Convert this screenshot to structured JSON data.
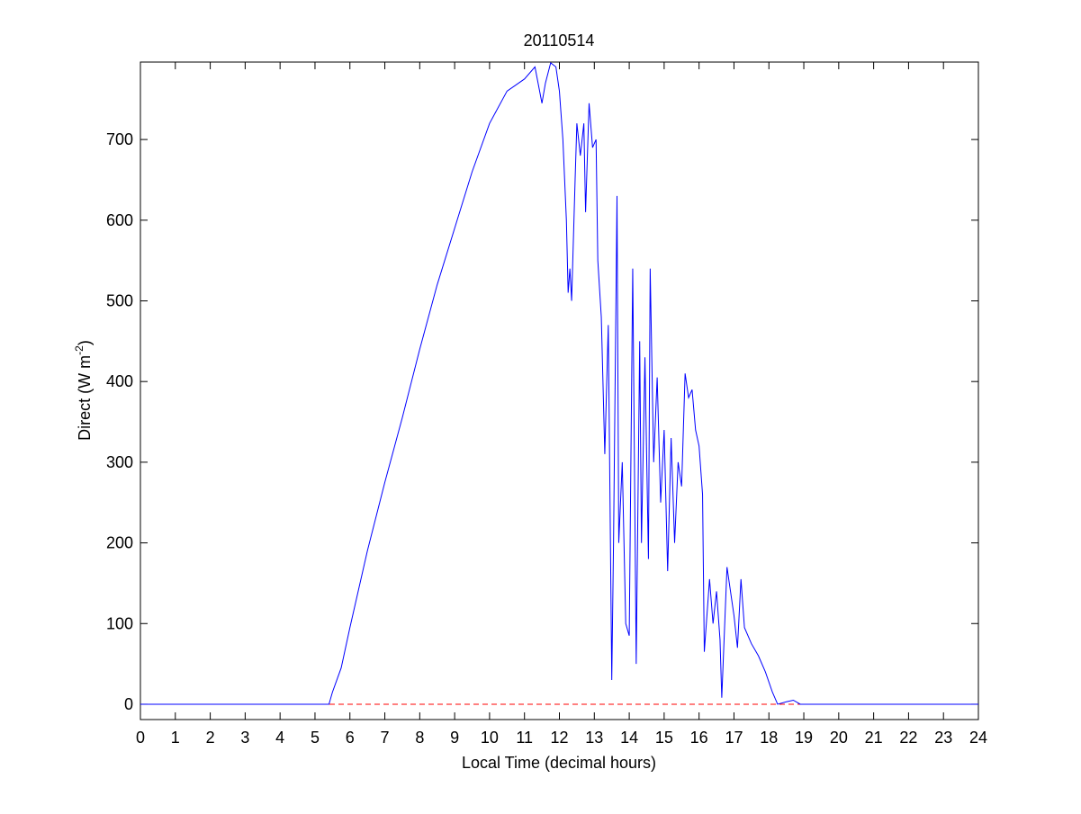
{
  "chart_data": {
    "type": "line",
    "title": "20110514",
    "x_label": "Local Time (decimal hours)",
    "y_label": [
      "Direct (W m",
      "-2",
      ")"
    ],
    "x": [
      0,
      5.4,
      5.5,
      5.75,
      6,
      6.5,
      7,
      7.5,
      8,
      8.5,
      9,
      9.5,
      10,
      10.5,
      11,
      11.3,
      11.5,
      11.6,
      11.75,
      11.9,
      12,
      12.1,
      12.2,
      12.25,
      12.3,
      12.35,
      12.45,
      12.5,
      12.6,
      12.7,
      12.75,
      12.85,
      12.95,
      13.05,
      13.1,
      13.2,
      13.3,
      13.4,
      13.5,
      13.55,
      13.65,
      13.7,
      13.8,
      13.9,
      14,
      14.1,
      14.2,
      14.3,
      14.35,
      14.45,
      14.55,
      14.6,
      14.7,
      14.8,
      14.9,
      15,
      15.1,
      15.2,
      15.3,
      15.4,
      15.5,
      15.6,
      15.7,
      15.8,
      15.9,
      16,
      16.1,
      16.15,
      16.3,
      16.4,
      16.5,
      16.6,
      16.65,
      16.8,
      16.9,
      17,
      17.1,
      17.2,
      17.3,
      17.5,
      17.7,
      17.9,
      18.1,
      18.25,
      18.5,
      18.7,
      18.9,
      24
    ],
    "series": [
      {
        "color": "#0000ff",
        "values": [
          0,
          0,
          15,
          45,
          95,
          190,
          275,
          355,
          440,
          520,
          590,
          660,
          720,
          760,
          775,
          790,
          745,
          770,
          795,
          790,
          760,
          700,
          600,
          510,
          540,
          500,
          650,
          720,
          680,
          720,
          610,
          745,
          690,
          700,
          550,
          480,
          310,
          470,
          30,
          200,
          630,
          200,
          300,
          100,
          85,
          540,
          50,
          450,
          200,
          430,
          180,
          540,
          300,
          405,
          250,
          340,
          165,
          330,
          200,
          300,
          270,
          410,
          380,
          390,
          340,
          320,
          260,
          65,
          155,
          100,
          140,
          80,
          8,
          170,
          140,
          110,
          70,
          155,
          95,
          75,
          60,
          40,
          15,
          0,
          3,
          5,
          0,
          0
        ]
      }
    ],
    "reference_line": {
      "value": 0,
      "color": "#ff0000"
    },
    "xlim": [
      0,
      24
    ],
    "xticks": [
      0,
      1,
      2,
      3,
      4,
      5,
      6,
      7,
      8,
      9,
      10,
      11,
      12,
      13,
      14,
      15,
      16,
      17,
      18,
      19,
      20,
      21,
      22,
      23,
      24
    ],
    "ylim": [
      -19,
      796
    ],
    "yticks": [
      0,
      100,
      200,
      300,
      400,
      500,
      600,
      700
    ]
  }
}
